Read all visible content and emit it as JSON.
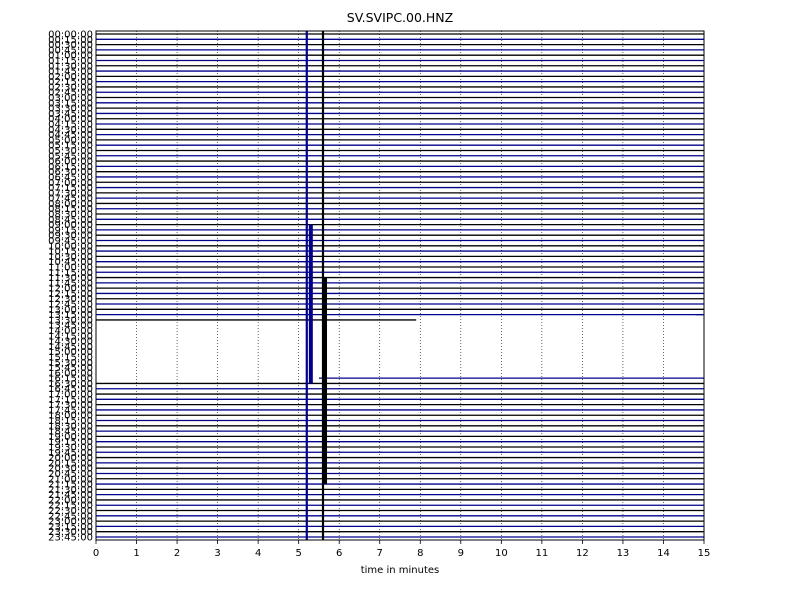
{
  "chart_data": {
    "type": "line",
    "title": "SV.SVIPC.00.HNZ",
    "xlabel": "time in minutes",
    "ylabel": "",
    "xlim": [
      0,
      15
    ],
    "x_ticks": [
      "0",
      "1",
      "2",
      "3",
      "4",
      "5",
      "6",
      "7",
      "8",
      "9",
      "10",
      "11",
      "12",
      "13",
      "14",
      "15"
    ],
    "x_grid": "dotted",
    "row_labels": [
      "00:00:00",
      "00:15:00",
      "00:30:00",
      "00:45:00",
      "01:00:00",
      "01:15:00",
      "01:30:00",
      "01:45:00",
      "02:00:00",
      "02:15:00",
      "02:30:00",
      "02:45:00",
      "03:00:00",
      "03:15:00",
      "03:30:00",
      "03:45:00",
      "04:00:00",
      "04:15:00",
      "04:30:00",
      "04:45:00",
      "05:00:00",
      "05:15:00",
      "05:30:00",
      "05:45:00",
      "06:00:00",
      "06:15:00",
      "06:30:00",
      "06:45:00",
      "07:00:00",
      "07:15:00",
      "07:30:00",
      "07:45:00",
      "08:00:00",
      "08:15:00",
      "08:30:00",
      "08:45:00",
      "09:00:00",
      "09:15:00",
      "09:30:00",
      "09:45:00",
      "10:00:00",
      "10:15:00",
      "10:30:00",
      "10:45:00",
      "11:00:00",
      "11:15:00",
      "11:30:00",
      "11:45:00",
      "12:00:00",
      "12:15:00",
      "12:30:00",
      "12:45:00",
      "13:00:00",
      "13:15:00",
      "13:30:00",
      "13:45:00",
      "14:00:00",
      "14:15:00",
      "14:30:00",
      "14:45:00",
      "15:00:00",
      "15:15:00",
      "15:30:00",
      "15:45:00",
      "16:00:00",
      "16:15:00",
      "16:30:00",
      "16:45:00",
      "17:00:00",
      "17:15:00",
      "17:30:00",
      "17:45:00",
      "18:00:00",
      "18:15:00",
      "18:30:00",
      "18:45:00",
      "19:00:00",
      "19:15:00",
      "19:30:00",
      "19:45:00",
      "20:00:00",
      "20:15:00",
      "20:30:00",
      "20:45:00",
      "21:00:00",
      "21:15:00",
      "21:30:00",
      "21:45:00",
      "22:00:00",
      "22:15:00",
      "22:30:00",
      "22:45:00",
      "23:00:00",
      "23:15:00",
      "23:30:00",
      "23:45:00"
    ],
    "series_colors": [
      "#000000",
      "#00008b"
    ],
    "gap": {
      "from_row": 54,
      "to_row": 66,
      "ends_minute": 7.9,
      "resumes_minute": 14.8
    },
    "spikes": [
      {
        "minute": 5.2,
        "color": "#00008b"
      },
      {
        "minute": 5.6,
        "color": "#000000"
      }
    ],
    "bursts": [
      {
        "from_row": 36,
        "to_row": 66,
        "minute": 5.3,
        "color": "#00008b"
      },
      {
        "from_row": 46,
        "to_row": 85,
        "minute": 5.65,
        "color": "#000000"
      }
    ]
  }
}
